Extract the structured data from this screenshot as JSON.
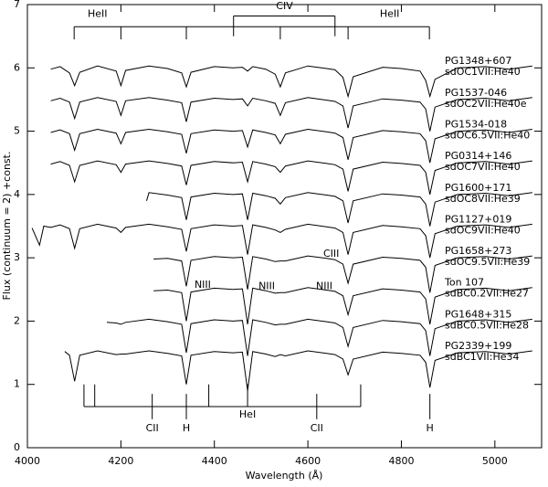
{
  "chart_data": {
    "type": "line",
    "xlabel": "Wavelength (Å)",
    "ylabel": "Flux (continuum = 2) +const.",
    "xlim": [
      4000,
      5100
    ],
    "ylim": [
      0,
      7
    ],
    "xticks": [
      4000,
      4200,
      4400,
      4600,
      4800,
      5000
    ],
    "yticks": [
      0,
      1,
      2,
      3,
      4,
      5,
      6,
      7
    ],
    "grid": false,
    "series": [
      {
        "name": "PG1348+607",
        "class": "sdOC1VII:He40",
        "color": "#000000",
        "x": [
          4050,
          4070,
          4090,
          4101,
          4112,
          4150,
          4190,
          4200,
          4210,
          4260,
          4300,
          4330,
          4340,
          4350,
          4400,
          4440,
          4460,
          4471,
          4482,
          4510,
          4530,
          4541,
          4552,
          4600,
          4640,
          4658,
          4675,
          4686,
          4697,
          4760,
          4800,
          4840,
          4852,
          4861,
          4872,
          4920,
          4980,
          5030,
          5080
        ],
        "values": [
          5.98,
          6.02,
          5.92,
          5.72,
          5.93,
          6.03,
          5.95,
          5.72,
          5.96,
          6.03,
          5.99,
          5.92,
          5.7,
          5.93,
          6.02,
          6.0,
          6.01,
          5.95,
          6.02,
          5.98,
          5.9,
          5.7,
          5.92,
          6.03,
          5.99,
          5.97,
          5.85,
          5.55,
          5.86,
          6.01,
          5.99,
          5.95,
          5.8,
          5.55,
          5.82,
          6.0,
          6.02,
          5.98,
          6.03
        ]
      },
      {
        "name": "PG1537-046",
        "class": "sdOC2VII:He40e",
        "color": "#000000",
        "x": [
          4050,
          4070,
          4090,
          4101,
          4112,
          4150,
          4190,
          4200,
          4210,
          4260,
          4300,
          4330,
          4340,
          4350,
          4400,
          4440,
          4460,
          4471,
          4482,
          4510,
          4530,
          4541,
          4552,
          4600,
          4640,
          4658,
          4675,
          4686,
          4697,
          4760,
          4800,
          4840,
          4852,
          4861,
          4872,
          4920,
          4980,
          5030,
          5080
        ],
        "values": [
          5.48,
          5.52,
          5.46,
          5.2,
          5.46,
          5.53,
          5.47,
          5.25,
          5.48,
          5.53,
          5.49,
          5.45,
          5.15,
          5.46,
          5.52,
          5.5,
          5.51,
          5.4,
          5.52,
          5.48,
          5.44,
          5.25,
          5.45,
          5.53,
          5.49,
          5.47,
          5.4,
          5.05,
          5.4,
          5.51,
          5.49,
          5.46,
          5.35,
          5.0,
          5.38,
          5.5,
          5.52,
          5.48,
          5.53
        ]
      },
      {
        "name": "PG1534-018",
        "class": "sdOC6.5VII:He40",
        "color": "#000000",
        "x": [
          4050,
          4070,
          4090,
          4101,
          4112,
          4150,
          4190,
          4200,
          4210,
          4260,
          4300,
          4330,
          4340,
          4350,
          4400,
          4440,
          4460,
          4471,
          4482,
          4510,
          4530,
          4541,
          4552,
          4600,
          4640,
          4658,
          4675,
          4686,
          4697,
          4760,
          4800,
          4840,
          4852,
          4861,
          4872,
          4920,
          4980,
          5030,
          5080
        ],
        "values": [
          4.98,
          5.02,
          4.96,
          4.7,
          4.96,
          5.03,
          4.97,
          4.8,
          4.98,
          5.03,
          4.99,
          4.95,
          4.65,
          4.96,
          5.02,
          5.0,
          5.01,
          4.75,
          5.02,
          4.98,
          4.94,
          4.8,
          4.95,
          5.03,
          4.99,
          4.97,
          4.9,
          4.55,
          4.9,
          5.01,
          4.99,
          4.96,
          4.85,
          4.5,
          4.88,
          5.0,
          5.02,
          4.98,
          5.03
        ]
      },
      {
        "name": "PG0314+146",
        "class": "sdOC7VII:He40",
        "color": "#000000",
        "x": [
          4050,
          4070,
          4090,
          4101,
          4112,
          4150,
          4190,
          4200,
          4210,
          4260,
          4300,
          4330,
          4340,
          4350,
          4400,
          4440,
          4460,
          4471,
          4482,
          4510,
          4530,
          4541,
          4552,
          4600,
          4640,
          4658,
          4675,
          4686,
          4697,
          4760,
          4800,
          4840,
          4852,
          4861,
          4872,
          4920,
          4980,
          5030,
          5080
        ],
        "values": [
          4.48,
          4.52,
          4.46,
          4.2,
          4.46,
          4.53,
          4.47,
          4.35,
          4.48,
          4.53,
          4.49,
          4.45,
          4.15,
          4.46,
          4.52,
          4.5,
          4.51,
          4.2,
          4.52,
          4.48,
          4.44,
          4.35,
          4.45,
          4.53,
          4.49,
          4.47,
          4.4,
          4.05,
          4.4,
          4.51,
          4.49,
          4.46,
          4.35,
          4.0,
          4.38,
          4.5,
          4.52,
          4.48,
          4.53
        ]
      },
      {
        "name": "PG1600+171",
        "class": "sdOC8VII:He39",
        "color": "#000000",
        "x": [
          4255,
          4260,
          4300,
          4330,
          4340,
          4350,
          4400,
          4440,
          4460,
          4471,
          4482,
          4510,
          4530,
          4541,
          4552,
          4600,
          4640,
          4658,
          4675,
          4686,
          4697,
          4760,
          4800,
          4840,
          4852,
          4861,
          4872,
          4920,
          4980,
          5030,
          5080
        ],
        "values": [
          3.9,
          4.03,
          3.99,
          3.95,
          3.6,
          3.96,
          4.02,
          4.0,
          4.01,
          3.6,
          4.02,
          3.98,
          3.94,
          3.85,
          3.95,
          4.03,
          3.99,
          3.97,
          3.9,
          3.55,
          3.9,
          4.01,
          3.99,
          3.96,
          3.85,
          3.5,
          3.88,
          4.0,
          4.02,
          3.98,
          4.03
        ]
      },
      {
        "name": "PG1127+019",
        "class": "sdOC9VII:He40",
        "color": "#000000",
        "x": [
          4010,
          4026,
          4035,
          4050,
          4070,
          4090,
          4101,
          4112,
          4150,
          4190,
          4200,
          4210,
          4260,
          4300,
          4330,
          4340,
          4350,
          4400,
          4440,
          4460,
          4471,
          4482,
          4510,
          4530,
          4541,
          4552,
          4600,
          4640,
          4658,
          4675,
          4686,
          4697,
          4760,
          4800,
          4840,
          4852,
          4861,
          4872,
          4920,
          4980,
          5030,
          5080
        ],
        "values": [
          3.47,
          3.2,
          3.5,
          3.48,
          3.52,
          3.46,
          3.15,
          3.46,
          3.53,
          3.47,
          3.4,
          3.48,
          3.53,
          3.49,
          3.45,
          3.1,
          3.46,
          3.52,
          3.5,
          3.51,
          3.05,
          3.52,
          3.48,
          3.44,
          3.4,
          3.45,
          3.53,
          3.49,
          3.47,
          3.4,
          3.05,
          3.4,
          3.51,
          3.49,
          3.46,
          3.35,
          3.0,
          3.38,
          3.5,
          3.52,
          3.48,
          3.53
        ]
      },
      {
        "name": "PG1658+273",
        "class": "sdOC9.5VII:He39",
        "color": "#000000",
        "x": [
          4270,
          4300,
          4330,
          4340,
          4350,
          4400,
          4440,
          4460,
          4471,
          4482,
          4510,
          4530,
          4541,
          4552,
          4600,
          4640,
          4658,
          4675,
          4686,
          4697,
          4760,
          4800,
          4840,
          4852,
          4861,
          4872,
          4920,
          4980,
          5030,
          5080
        ],
        "values": [
          2.98,
          2.99,
          2.95,
          2.55,
          2.96,
          3.02,
          3.0,
          3.01,
          2.5,
          3.02,
          2.98,
          2.94,
          2.95,
          2.95,
          3.03,
          2.99,
          2.97,
          2.9,
          2.6,
          2.9,
          3.01,
          2.99,
          2.96,
          2.85,
          2.45,
          2.88,
          3.0,
          3.02,
          2.98,
          3.03
        ]
      },
      {
        "name": "Ton 107",
        "class": "sdBC0.2VII:He27",
        "color": "#000000",
        "x": [
          4270,
          4300,
          4330,
          4340,
          4350,
          4400,
          4440,
          4460,
          4471,
          4482,
          4510,
          4530,
          4541,
          4552,
          4600,
          4640,
          4658,
          4675,
          4686,
          4697,
          4760,
          4800,
          4840,
          4852,
          4861,
          4872,
          4920,
          4980,
          5030,
          5080
        ],
        "values": [
          2.48,
          2.49,
          2.45,
          2.0,
          2.46,
          2.52,
          2.5,
          2.51,
          1.95,
          2.52,
          2.48,
          2.44,
          2.45,
          2.45,
          2.53,
          2.49,
          2.47,
          2.4,
          2.1,
          2.4,
          2.51,
          2.49,
          2.46,
          2.35,
          1.95,
          2.38,
          2.5,
          2.52,
          2.48,
          2.53
        ]
      },
      {
        "name": "PG1648+315",
        "class": "sdBC0.5VII:He28",
        "color": "#000000",
        "x": [
          4170,
          4190,
          4200,
          4210,
          4260,
          4300,
          4330,
          4340,
          4350,
          4400,
          4440,
          4460,
          4471,
          4482,
          4510,
          4530,
          4541,
          4552,
          4600,
          4640,
          4658,
          4675,
          4686,
          4697,
          4760,
          4800,
          4840,
          4852,
          4861,
          4872,
          4920,
          4980,
          5030,
          5080
        ],
        "values": [
          1.98,
          1.97,
          1.95,
          1.98,
          2.03,
          1.99,
          1.95,
          1.5,
          1.96,
          2.02,
          2.0,
          2.01,
          1.45,
          2.02,
          1.98,
          1.94,
          1.95,
          1.95,
          2.03,
          1.99,
          1.97,
          1.9,
          1.6,
          1.9,
          2.01,
          1.99,
          1.96,
          1.85,
          1.45,
          1.88,
          2.0,
          2.02,
          1.98,
          2.03
        ]
      },
      {
        "name": "PG2339+199",
        "class": "sdBC1VII:He34",
        "color": "#000000",
        "x": [
          4080,
          4090,
          4101,
          4112,
          4150,
          4190,
          4200,
          4210,
          4260,
          4300,
          4330,
          4340,
          4350,
          4400,
          4440,
          4460,
          4471,
          4482,
          4510,
          4530,
          4541,
          4552,
          4600,
          4640,
          4658,
          4675,
          4686,
          4697,
          4760,
          4800,
          4840,
          4852,
          4861,
          4872,
          4920,
          4980,
          5030,
          5080
        ],
        "values": [
          1.52,
          1.46,
          1.05,
          1.46,
          1.53,
          1.47,
          1.48,
          1.48,
          1.53,
          1.49,
          1.45,
          1.0,
          1.46,
          1.52,
          1.5,
          1.51,
          0.9,
          1.52,
          1.48,
          1.44,
          1.47,
          1.45,
          1.53,
          1.49,
          1.47,
          1.4,
          1.15,
          1.4,
          1.51,
          1.49,
          1.46,
          1.35,
          0.95,
          1.38,
          1.5,
          1.52,
          1.48,
          1.53
        ]
      }
    ],
    "line_groups": [
      {
        "label": "HeII",
        "wavelengths": [
          4100,
          4200,
          4340,
          4541,
          4686,
          4860
        ]
      },
      {
        "label": "CIV",
        "wavelengths": [
          4441,
          4658
        ]
      },
      {
        "label": "HeI",
        "wavelengths": [
          4121,
          4144,
          4388,
          4471,
          4713
        ]
      },
      {
        "label": "CII",
        "wavelengths": [
          4267,
          4619
        ]
      },
      {
        "label": "H",
        "wavelengths": [
          4340,
          4861
        ]
      }
    ],
    "notes": [
      "NIII",
      "NIII",
      "NIII",
      "CIII"
    ]
  }
}
